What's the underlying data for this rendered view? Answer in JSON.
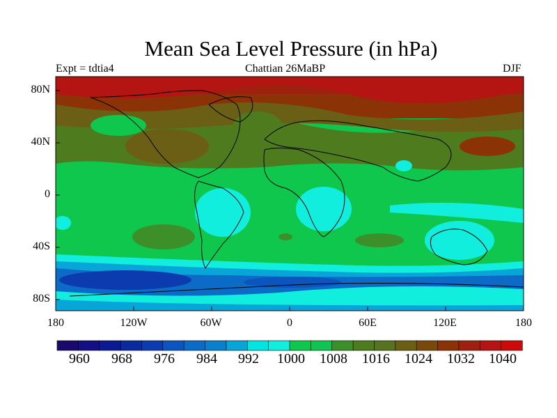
{
  "title": "Mean Sea Level Pressure (in hPa)",
  "subtitle_left": "Expt = tdtia4",
  "subtitle_center": "Chattian  26MaBP",
  "subtitle_right": "DJF",
  "y_ticks": [
    "80N",
    "40N",
    "0",
    "40S",
    "80S"
  ],
  "x_ticks": [
    "180",
    "120W",
    "60W",
    "0",
    "60E",
    "120E",
    "180"
  ],
  "colorbar": {
    "labels": [
      "960",
      "968",
      "976",
      "984",
      "992",
      "1000",
      "1008",
      "1016",
      "1024",
      "1032",
      "1040"
    ],
    "colors": [
      "#1c0a6a",
      "#140f82",
      "#0c1a94",
      "#0a2aa0",
      "#0c3bb0",
      "#0c55bf",
      "#0b6bc6",
      "#0a80cc",
      "#08a6d8",
      "#00e5e0",
      "#11eedd",
      "#10c74e",
      "#0fc452",
      "#3d8f2a",
      "#4e7b1e",
      "#557320",
      "#6a5f14",
      "#7a4a0c",
      "#8b3207",
      "#a02010",
      "#b41412",
      "#cc0a0a"
    ],
    "bounds": [
      960,
      964,
      968,
      972,
      976,
      980,
      984,
      988,
      992,
      996,
      1000,
      1004,
      1008,
      1012,
      1016,
      1020,
      1024,
      1028,
      1032,
      1036,
      1040
    ]
  }
}
